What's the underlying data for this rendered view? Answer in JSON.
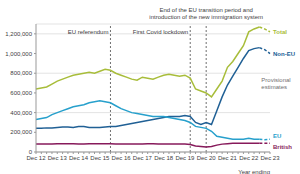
{
  "chart_data": {
    "type": "line",
    "x_label": "Year ending",
    "categories": [
      "Dec 12",
      null,
      null,
      null,
      "Dec 13",
      null,
      null,
      null,
      "Dec 14",
      null,
      null,
      null,
      "Dec 15",
      null,
      null,
      null,
      "Dec 16",
      null,
      null,
      null,
      "Dec 17",
      null,
      null,
      null,
      "Dec 18",
      null,
      null,
      null,
      "Dec 19",
      null,
      null,
      null,
      "Dec 20",
      null,
      null,
      null,
      "Dec 21",
      null,
      null,
      null,
      "Dec 22",
      null,
      null,
      null,
      "Dec 23"
    ],
    "series": [
      {
        "name": "Total",
        "color": "#a8bd3a",
        "values": [
          640000,
          650000,
          660000,
          690000,
          720000,
          740000,
          760000,
          780000,
          790000,
          800000,
          810000,
          800000,
          820000,
          840000,
          830000,
          800000,
          780000,
          760000,
          740000,
          730000,
          760000,
          750000,
          740000,
          760000,
          780000,
          790000,
          780000,
          770000,
          780000,
          750000,
          640000,
          620000,
          600000,
          560000,
          640000,
          720000,
          860000,
          920000,
          1000000,
          1080000,
          1220000,
          1250000,
          1270000,
          1250000,
          1220000
        ]
      },
      {
        "name": "Non-EU",
        "color": "#206095",
        "values": [
          240000,
          240000,
          245000,
          245000,
          250000,
          255000,
          255000,
          250000,
          260000,
          260000,
          250000,
          250000,
          250000,
          255000,
          260000,
          260000,
          270000,
          280000,
          290000,
          300000,
          310000,
          320000,
          330000,
          340000,
          350000,
          360000,
          360000,
          360000,
          370000,
          360000,
          300000,
          280000,
          300000,
          280000,
          420000,
          560000,
          680000,
          770000,
          860000,
          950000,
          1030000,
          1050000,
          1060000,
          1040000,
          1000000
        ]
      },
      {
        "name": "EU",
        "color": "#27a0cc",
        "values": [
          330000,
          340000,
          350000,
          380000,
          400000,
          420000,
          440000,
          460000,
          470000,
          480000,
          500000,
          510000,
          520000,
          510000,
          500000,
          470000,
          440000,
          420000,
          400000,
          390000,
          380000,
          370000,
          360000,
          360000,
          360000,
          350000,
          340000,
          330000,
          320000,
          300000,
          260000,
          250000,
          240000,
          210000,
          160000,
          150000,
          140000,
          130000,
          130000,
          130000,
          140000,
          130000,
          130000,
          125000,
          130000
        ]
      },
      {
        "name": "British",
        "color": "#871a5b",
        "values": [
          80000,
          80000,
          82000,
          82000,
          85000,
          85000,
          84000,
          83000,
          82000,
          82000,
          83000,
          84000,
          85000,
          84000,
          83000,
          82000,
          82000,
          81000,
          80000,
          80000,
          82000,
          83000,
          83000,
          82000,
          82000,
          81000,
          81000,
          80000,
          80000,
          75000,
          60000,
          55000,
          50000,
          55000,
          70000,
          80000,
          85000,
          90000,
          90000,
          90000,
          90000,
          90000,
          90000,
          90000,
          90000
        ]
      }
    ],
    "ylim": [
      0,
      1300000
    ],
    "yticks": [
      0,
      {
        "value": 200000,
        "label": "200,000"
      },
      {
        "value": 400000,
        "label": "400,000"
      },
      {
        "value": 600000,
        "label": "600,000"
      },
      {
        "value": 800000,
        "label": "800,000"
      },
      {
        "value": 1000000,
        "label": "1,000,000"
      },
      {
        "value": 1200000,
        "label": "1,200,000"
      }
    ],
    "grid": true,
    "events": [
      {
        "text": [
          "EU referendum"
        ],
        "x": 14
      },
      {
        "text": [
          "First Covid lockdown"
        ],
        "x": 29
      },
      {
        "text": [
          "End of the EU transition period and",
          "introduction of the new immigration system"
        ],
        "x": 32
      }
    ],
    "provisional": {
      "text": [
        "Provisional",
        "estimates"
      ],
      "from": 42
    }
  }
}
